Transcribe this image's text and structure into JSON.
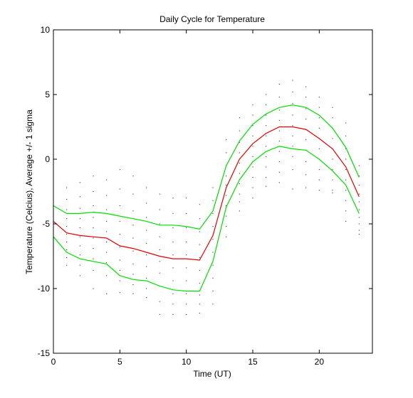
{
  "chart_data": {
    "type": "line",
    "title": "Daily Cycle for Temperature",
    "xlabel": "Time (UT)",
    "ylabel": "Temperature (Celcius), Average +/- 1 sigma",
    "xlim": [
      0,
      24
    ],
    "ylim": [
      -15,
      10
    ],
    "xticks": [
      0,
      5,
      10,
      15,
      20
    ],
    "yticks": [
      -15,
      -10,
      -5,
      0,
      5,
      10
    ],
    "grid": false,
    "colors": {
      "mean": "#e00000",
      "sigma": "#00dd00",
      "scatter": "#000000",
      "axes": "#000000"
    },
    "x": [
      0,
      1,
      2,
      3,
      4,
      5,
      6,
      7,
      8,
      9,
      10,
      11,
      12,
      13,
      14,
      15,
      16,
      17,
      18,
      19,
      20,
      21,
      22,
      23
    ],
    "series": [
      {
        "role": "mean",
        "values": [
          -4.8,
          -5.7,
          -5.9,
          -6.0,
          -6.1,
          -6.7,
          -6.9,
          -7.2,
          -7.5,
          -7.7,
          -7.7,
          -7.8,
          -5.9,
          -2.2,
          0.0,
          1.2,
          2.0,
          2.5,
          2.5,
          2.3,
          1.6,
          0.8,
          -0.6,
          -2.9
        ]
      },
      {
        "role": "mean+1sigma",
        "values": [
          -3.6,
          -4.2,
          -4.2,
          -4.1,
          -4.2,
          -4.4,
          -4.6,
          -4.8,
          -5.1,
          -5.1,
          -5.2,
          -5.4,
          -4.0,
          -0.5,
          1.4,
          2.7,
          3.5,
          4.0,
          4.2,
          4.0,
          3.4,
          2.4,
          0.9,
          -1.4
        ]
      },
      {
        "role": "mean-1sigma",
        "values": [
          -6.0,
          -7.2,
          -7.7,
          -7.9,
          -8.1,
          -9.0,
          -9.3,
          -9.4,
          -9.8,
          -10.1,
          -10.2,
          -10.2,
          -7.9,
          -3.7,
          -1.6,
          -0.2,
          0.6,
          1.0,
          0.8,
          0.7,
          0.0,
          -0.9,
          -2.0,
          -4.2
        ]
      }
    ],
    "scatter_points": [
      [
        0,
        -2.5
      ],
      [
        0,
        -3.0
      ],
      [
        0,
        -3.5
      ],
      [
        0,
        -4.0
      ],
      [
        0,
        -4.5
      ],
      [
        0,
        -5.0
      ],
      [
        0,
        -5.5
      ],
      [
        0,
        -6.0
      ],
      [
        0,
        -6.5
      ],
      [
        0,
        -7.0
      ],
      [
        1,
        -2.2
      ],
      [
        1,
        -3.1
      ],
      [
        1,
        -3.9
      ],
      [
        1,
        -4.6
      ],
      [
        1,
        -5.2
      ],
      [
        1,
        -5.8
      ],
      [
        1,
        -6.4
      ],
      [
        1,
        -7.0
      ],
      [
        1,
        -7.6
      ],
      [
        1,
        -8.2
      ],
      [
        2,
        -1.8
      ],
      [
        2,
        -2.9
      ],
      [
        2,
        -3.8
      ],
      [
        2,
        -4.6
      ],
      [
        2,
        -5.3
      ],
      [
        2,
        -6.0
      ],
      [
        2,
        -6.7
      ],
      [
        2,
        -7.4
      ],
      [
        2,
        -8.2
      ],
      [
        2,
        -9.0
      ],
      [
        3,
        -1.3
      ],
      [
        3,
        -2.5
      ],
      [
        3,
        -3.6
      ],
      [
        3,
        -4.5
      ],
      [
        3,
        -5.3
      ],
      [
        3,
        -6.1
      ],
      [
        3,
        -6.9
      ],
      [
        3,
        -7.7
      ],
      [
        3,
        -8.6
      ],
      [
        3,
        -10.0
      ],
      [
        4,
        -1.6
      ],
      [
        4,
        -2.8
      ],
      [
        4,
        -3.9
      ],
      [
        4,
        -4.8
      ],
      [
        4,
        -5.6
      ],
      [
        4,
        -6.4
      ],
      [
        4,
        -7.2
      ],
      [
        4,
        -8.0
      ],
      [
        4,
        -9.0
      ],
      [
        4,
        -10.4
      ],
      [
        5,
        -0.8
      ],
      [
        5,
        -2.3
      ],
      [
        5,
        -3.6
      ],
      [
        5,
        -4.8
      ],
      [
        5,
        -5.8
      ],
      [
        5,
        -6.8
      ],
      [
        5,
        -7.8
      ],
      [
        5,
        -8.6
      ],
      [
        5,
        -9.4
      ],
      [
        5,
        -10.3
      ],
      [
        6,
        -1.3
      ],
      [
        6,
        -2.7
      ],
      [
        6,
        -4.0
      ],
      [
        6,
        -5.1
      ],
      [
        6,
        -6.1
      ],
      [
        6,
        -7.1
      ],
      [
        6,
        -8.1
      ],
      [
        6,
        -8.9
      ],
      [
        6,
        -9.7
      ],
      [
        6,
        -10.4
      ],
      [
        7,
        -2.2
      ],
      [
        7,
        -3.4
      ],
      [
        7,
        -4.5
      ],
      [
        7,
        -5.5
      ],
      [
        7,
        -6.5
      ],
      [
        7,
        -7.4
      ],
      [
        7,
        -8.3
      ],
      [
        7,
        -9.2
      ],
      [
        7,
        -10.0
      ],
      [
        7,
        -10.7
      ],
      [
        8,
        -2.7
      ],
      [
        8,
        -3.9
      ],
      [
        8,
        -5.0
      ],
      [
        8,
        -6.0
      ],
      [
        8,
        -7.0
      ],
      [
        8,
        -7.9
      ],
      [
        8,
        -8.8
      ],
      [
        8,
        -9.8
      ],
      [
        8,
        -11.0
      ],
      [
        8,
        -12.0
      ],
      [
        9,
        -3.0
      ],
      [
        9,
        -4.2
      ],
      [
        9,
        -5.3
      ],
      [
        9,
        -6.4
      ],
      [
        9,
        -7.4
      ],
      [
        9,
        -8.4
      ],
      [
        9,
        -9.4
      ],
      [
        9,
        -10.4
      ],
      [
        9,
        -11.2
      ],
      [
        9,
        -12.0
      ],
      [
        10,
        -3.0
      ],
      [
        10,
        -4.2
      ],
      [
        10,
        -5.3
      ],
      [
        10,
        -6.4
      ],
      [
        10,
        -7.4
      ],
      [
        10,
        -8.4
      ],
      [
        10,
        -9.4
      ],
      [
        10,
        -10.4
      ],
      [
        10,
        -11.2
      ],
      [
        10,
        -12.0
      ],
      [
        11,
        -3.5
      ],
      [
        11,
        -4.6
      ],
      [
        11,
        -5.6
      ],
      [
        11,
        -6.6
      ],
      [
        11,
        -7.6
      ],
      [
        11,
        -8.6
      ],
      [
        11,
        -9.6
      ],
      [
        11,
        -10.5
      ],
      [
        11,
        -11.2
      ],
      [
        11,
        -11.9
      ],
      [
        12,
        -2.2
      ],
      [
        12,
        -3.2
      ],
      [
        12,
        -4.2
      ],
      [
        12,
        -5.2
      ],
      [
        12,
        -6.2
      ],
      [
        12,
        -7.2
      ],
      [
        12,
        -8.2
      ],
      [
        12,
        -9.2
      ],
      [
        12,
        -10.2
      ],
      [
        12,
        -11.2
      ],
      [
        13,
        1.5
      ],
      [
        13,
        0.5
      ],
      [
        13,
        -0.5
      ],
      [
        13,
        -1.3
      ],
      [
        13,
        -2.0
      ],
      [
        13,
        -2.8
      ],
      [
        13,
        -3.6
      ],
      [
        13,
        -4.4
      ],
      [
        13,
        -5.2
      ],
      [
        13,
        -6.0
      ],
      [
        14,
        3.2
      ],
      [
        14,
        2.2
      ],
      [
        14,
        1.3
      ],
      [
        14,
        0.5
      ],
      [
        14,
        -0.3
      ],
      [
        14,
        -1.1
      ],
      [
        14,
        -1.9
      ],
      [
        14,
        -2.7
      ],
      [
        14,
        -3.3
      ],
      [
        14,
        -4.0
      ],
      [
        15,
        4.2
      ],
      [
        15,
        3.4
      ],
      [
        15,
        2.6
      ],
      [
        15,
        1.8
      ],
      [
        15,
        1.0
      ],
      [
        15,
        0.2
      ],
      [
        15,
        -0.6
      ],
      [
        15,
        -1.4
      ],
      [
        15,
        -2.2
      ],
      [
        15,
        -3.0
      ],
      [
        16,
        5.0
      ],
      [
        16,
        4.2
      ],
      [
        16,
        3.4
      ],
      [
        16,
        2.6
      ],
      [
        16,
        1.8
      ],
      [
        16,
        1.0
      ],
      [
        16,
        0.2
      ],
      [
        16,
        -0.6
      ],
      [
        16,
        -1.4
      ],
      [
        16,
        -2.1
      ],
      [
        17,
        5.8
      ],
      [
        17,
        4.8
      ],
      [
        17,
        3.8
      ],
      [
        17,
        3.0
      ],
      [
        17,
        2.2
      ],
      [
        17,
        1.4
      ],
      [
        17,
        0.6
      ],
      [
        17,
        -0.2
      ],
      [
        17,
        -1.0
      ],
      [
        17,
        -1.8
      ],
      [
        18,
        6.1
      ],
      [
        18,
        5.2
      ],
      [
        18,
        4.3
      ],
      [
        18,
        3.4
      ],
      [
        18,
        2.6
      ],
      [
        18,
        1.8
      ],
      [
        18,
        1.0
      ],
      [
        18,
        0.2
      ],
      [
        18,
        -0.8
      ],
      [
        18,
        -2.3
      ],
      [
        19,
        5.6
      ],
      [
        19,
        4.8
      ],
      [
        19,
        3.9
      ],
      [
        19,
        3.1
      ],
      [
        19,
        2.3
      ],
      [
        19,
        1.5
      ],
      [
        19,
        0.7
      ],
      [
        19,
        -0.2
      ],
      [
        19,
        -1.2
      ],
      [
        19,
        -2.2
      ],
      [
        20,
        4.8
      ],
      [
        20,
        4.0
      ],
      [
        20,
        3.2
      ],
      [
        20,
        2.4
      ],
      [
        20,
        1.6
      ],
      [
        20,
        0.8
      ],
      [
        20,
        0.0
      ],
      [
        20,
        -0.8
      ],
      [
        20,
        -1.6
      ],
      [
        20,
        -2.4
      ],
      [
        21,
        4.0
      ],
      [
        21,
        3.2
      ],
      [
        21,
        2.4
      ],
      [
        21,
        1.6
      ],
      [
        21,
        0.8
      ],
      [
        21,
        0.0
      ],
      [
        21,
        -0.8
      ],
      [
        21,
        -1.6
      ],
      [
        21,
        -2.4
      ],
      [
        21,
        -2.6
      ],
      [
        22,
        2.8
      ],
      [
        22,
        1.8
      ],
      [
        22,
        0.8
      ],
      [
        22,
        0.0
      ],
      [
        22,
        -0.8
      ],
      [
        22,
        -1.6
      ],
      [
        22,
        -2.4
      ],
      [
        22,
        -3.2
      ],
      [
        22,
        -4.0
      ],
      [
        22,
        -4.8
      ],
      [
        23,
        -0.5
      ],
      [
        23,
        -1.3
      ],
      [
        23,
        -2.0
      ],
      [
        23,
        -2.7
      ],
      [
        23,
        -3.3
      ],
      [
        23,
        -3.9
      ],
      [
        23,
        -4.5
      ],
      [
        23,
        -5.0
      ],
      [
        23,
        -5.5
      ],
      [
        23,
        -5.8
      ]
    ]
  }
}
